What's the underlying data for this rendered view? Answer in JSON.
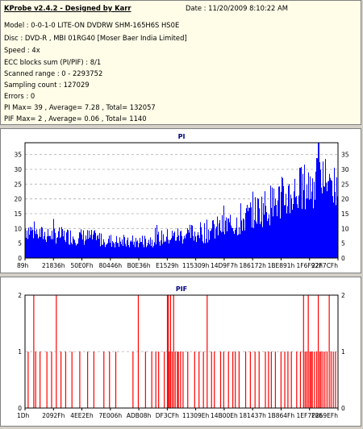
{
  "header": {
    "title": "KProbe v2.4.2 - Designed by Karr",
    "date": "Date : 11/20/2009 8:10:22 AM"
  },
  "info": {
    "model": "Model : 0-0-1-0 LITE-ON DVDRW SHM-165H6S HS0E",
    "disc": "Disc : DVD-R , MBI 01RG40 [Moser Baer India Limited]",
    "speed": "Speed : 4x",
    "ecc": "ECC blocks sum (PI/PIF) : 8/1",
    "scanned": "Scanned range : 0 - 2293752",
    "sampling": "Sampling count : 127029",
    "errors": "Errors : 0",
    "pi_summary": "PI Max= 39 , Average= 7.28 , Total= 132057",
    "pif_summary": "PIF Max= 2 , Average= 0.06 , Total= 1140"
  },
  "colors": {
    "pi": "#0000ff",
    "pif": "#ff0000",
    "title": "#000080",
    "grid": "#b0b0b0"
  },
  "chart_data": [
    {
      "type": "bar",
      "title": "PI",
      "ylim": [
        0,
        39
      ],
      "yticks": [
        0,
        5,
        10,
        15,
        20,
        25,
        30,
        35
      ],
      "xticks": [
        "89h",
        "21836h",
        "50E0Fh",
        "80446h",
        "B0E36h",
        "E1529h",
        "115309h",
        "14D9F7h",
        "186172h",
        "1BE891h",
        "1F6F92h",
        "22F7CFh"
      ],
      "grid": true,
      "profile": [
        {
          "p": 0.0,
          "base": 10,
          "var": 4
        },
        {
          "p": 0.05,
          "base": 8,
          "var": 3
        },
        {
          "p": 0.2,
          "base": 7,
          "var": 3
        },
        {
          "p": 0.33,
          "base": 5,
          "var": 2
        },
        {
          "p": 0.45,
          "base": 7,
          "var": 3
        },
        {
          "p": 0.58,
          "base": 9,
          "var": 4
        },
        {
          "p": 0.68,
          "base": 12,
          "var": 5
        },
        {
          "p": 0.74,
          "base": 16,
          "var": 6
        },
        {
          "p": 0.82,
          "base": 20,
          "var": 8
        },
        {
          "p": 0.9,
          "base": 24,
          "var": 9
        },
        {
          "p": 0.96,
          "base": 27,
          "var": 8
        },
        {
          "p": 1.0,
          "base": 22,
          "var": 6
        }
      ],
      "peak": {
        "p": 0.937,
        "value": 39
      }
    },
    {
      "type": "bar",
      "title": "PIF",
      "ylim": [
        0,
        2
      ],
      "yticks": [
        0,
        1,
        2
      ],
      "xticks": [
        "1Dh",
        "2092Fh",
        "4EE2Eh",
        "7E006h",
        "ADB08h",
        "DF3CFh",
        "11309Eh",
        "14B00Eh",
        "181437h",
        "1B864Fh",
        "1EF7F8h",
        "2269EFh"
      ],
      "grid": true,
      "bars": [
        [
          0.01,
          1
        ],
        [
          0.028,
          2
        ],
        [
          0.034,
          1
        ],
        [
          0.048,
          1
        ],
        [
          0.07,
          1
        ],
        [
          0.085,
          1
        ],
        [
          0.1,
          2
        ],
        [
          0.115,
          1
        ],
        [
          0.13,
          1
        ],
        [
          0.15,
          1
        ],
        [
          0.175,
          1
        ],
        [
          0.2,
          1
        ],
        [
          0.22,
          1
        ],
        [
          0.252,
          1
        ],
        [
          0.27,
          1
        ],
        [
          0.29,
          1
        ],
        [
          0.345,
          1
        ],
        [
          0.362,
          2
        ],
        [
          0.385,
          1
        ],
        [
          0.405,
          1
        ],
        [
          0.418,
          1
        ],
        [
          0.427,
          1
        ],
        [
          0.445,
          1
        ],
        [
          0.455,
          2
        ],
        [
          0.458,
          2
        ],
        [
          0.461,
          1
        ],
        [
          0.465,
          2
        ],
        [
          0.47,
          1
        ],
        [
          0.475,
          2
        ],
        [
          0.48,
          1
        ],
        [
          0.487,
          1
        ],
        [
          0.49,
          1
        ],
        [
          0.497,
          1
        ],
        [
          0.505,
          1
        ],
        [
          0.52,
          1
        ],
        [
          0.542,
          1
        ],
        [
          0.556,
          1
        ],
        [
          0.57,
          1
        ],
        [
          0.582,
          2
        ],
        [
          0.596,
          1
        ],
        [
          0.605,
          1
        ],
        [
          0.625,
          1
        ],
        [
          0.635,
          1
        ],
        [
          0.65,
          1
        ],
        [
          0.664,
          1
        ],
        [
          0.672,
          1
        ],
        [
          0.684,
          1
        ],
        [
          0.705,
          1
        ],
        [
          0.72,
          1
        ],
        [
          0.735,
          1
        ],
        [
          0.748,
          1
        ],
        [
          0.768,
          1
        ],
        [
          0.778,
          1
        ],
        [
          0.787,
          1
        ],
        [
          0.8,
          1
        ],
        [
          0.818,
          1
        ],
        [
          0.83,
          1
        ],
        [
          0.84,
          1
        ],
        [
          0.851,
          1
        ],
        [
          0.868,
          1
        ],
        [
          0.88,
          1
        ],
        [
          0.89,
          2
        ],
        [
          0.895,
          1
        ],
        [
          0.9,
          1
        ],
        [
          0.905,
          2
        ],
        [
          0.91,
          1
        ],
        [
          0.914,
          1
        ],
        [
          0.918,
          1
        ],
        [
          0.925,
          1
        ],
        [
          0.932,
          1
        ],
        [
          0.937,
          2
        ],
        [
          0.942,
          1
        ],
        [
          0.946,
          1
        ],
        [
          0.952,
          1
        ],
        [
          0.958,
          1
        ],
        [
          0.965,
          1
        ],
        [
          0.972,
          2
        ],
        [
          0.978,
          1
        ],
        [
          0.985,
          1
        ],
        [
          0.992,
          1
        ]
      ]
    }
  ]
}
